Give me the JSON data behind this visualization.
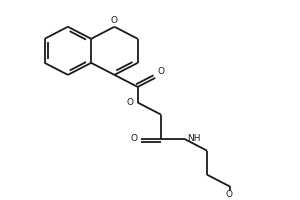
{
  "bg_color": "#ffffff",
  "line_color": "#1a1a1a",
  "line_width": 1.3,
  "fig_width": 3.0,
  "fig_height": 2.0,
  "dpi": 100,
  "xlim": [
    0.0,
    10.0
  ],
  "ylim": [
    0.0,
    6.5
  ]
}
